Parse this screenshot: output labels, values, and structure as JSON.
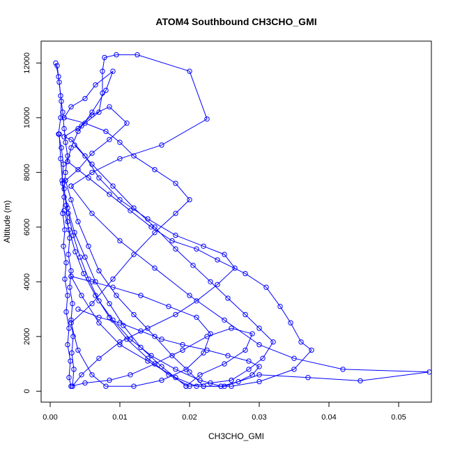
{
  "chart_data": {
    "type": "scatter",
    "title": "ATOM4 Southbound CH3CHO_GMI",
    "xlabel": "CH3CHO_GMI",
    "ylabel": "Altitude (m)",
    "xlim": [
      -0.0013,
      0.0547
    ],
    "ylim": [
      -400,
      12800
    ],
    "x_ticks": [
      0.0,
      0.01,
      0.02,
      0.03,
      0.04,
      0.05
    ],
    "x_tick_labels": [
      "0.00",
      "0.01",
      "0.02",
      "0.03",
      "0.04",
      "0.05"
    ],
    "y_ticks": [
      0,
      2000,
      4000,
      6000,
      8000,
      10000,
      12000
    ],
    "y_tick_labels": [
      "0",
      "2000",
      "4000",
      "6000",
      "8000",
      "10000",
      "12000"
    ],
    "grid": false,
    "legend": "none",
    "color": "#0000ff",
    "series": [
      {
        "points": [
          [
            0.0008,
            12000
          ],
          [
            0.0012,
            11500
          ],
          [
            0.0015,
            10800
          ],
          [
            0.0018,
            10200
          ],
          [
            0.002,
            9600
          ],
          [
            0.0022,
            9100
          ],
          [
            0.0025,
            8600
          ],
          [
            0.0022,
            8000
          ],
          [
            0.002,
            7400
          ],
          [
            0.0023,
            6800
          ],
          [
            0.0025,
            6200
          ],
          [
            0.0028,
            5600
          ],
          [
            0.0026,
            5000
          ],
          [
            0.003,
            4400
          ],
          [
            0.0028,
            3800
          ],
          [
            0.0032,
            3200
          ],
          [
            0.003,
            2600
          ],
          [
            0.0033,
            2000
          ],
          [
            0.0031,
            1400
          ],
          [
            0.0034,
            800
          ],
          [
            0.0032,
            180
          ]
        ]
      },
      {
        "points": [
          [
            0.0032,
            180
          ],
          [
            0.0045,
            600
          ],
          [
            0.007,
            1200
          ],
          [
            0.01,
            1800
          ],
          [
            0.014,
            2300
          ],
          [
            0.018,
            2800
          ],
          [
            0.021,
            3300
          ],
          [
            0.024,
            3900
          ],
          [
            0.0265,
            4500
          ],
          [
            0.025,
            5000
          ],
          [
            0.022,
            5300
          ],
          [
            0.018,
            5700
          ],
          [
            0.014,
            6300
          ],
          [
            0.01,
            7000
          ],
          [
            0.007,
            7800
          ],
          [
            0.005,
            8600
          ],
          [
            0.003,
            9200
          ],
          [
            0.002,
            9300
          ]
        ]
      },
      {
        "points": [
          [
            0.002,
            9300
          ],
          [
            0.0045,
            9700
          ],
          [
            0.007,
            10200
          ],
          [
            0.0075,
            10900
          ],
          [
            0.0075,
            11700
          ],
          [
            0.0078,
            12200
          ],
          [
            0.0095,
            12300
          ],
          [
            0.0125,
            12300
          ],
          [
            0.02,
            11700
          ],
          [
            0.0225,
            9950
          ],
          [
            0.016,
            9000
          ],
          [
            0.01,
            8500
          ],
          [
            0.006,
            8000
          ],
          [
            0.003,
            7500
          ]
        ]
      },
      {
        "points": [
          [
            0.003,
            7500
          ],
          [
            0.006,
            6500
          ],
          [
            0.01,
            5500
          ],
          [
            0.015,
            4500
          ],
          [
            0.02,
            3500
          ],
          [
            0.025,
            2600
          ],
          [
            0.03,
            1700
          ],
          [
            0.035,
            1200
          ],
          [
            0.042,
            800
          ],
          [
            0.0544,
            700
          ],
          [
            0.0445,
            380
          ],
          [
            0.037,
            500
          ],
          [
            0.03,
            600
          ],
          [
            0.025,
            180
          ],
          [
            0.021,
            180
          ],
          [
            0.018,
            500
          ],
          [
            0.014,
            1100
          ],
          [
            0.01,
            1700
          ],
          [
            0.007,
            2500
          ],
          [
            0.0045,
            3500
          ],
          [
            0.003,
            4200
          ]
        ]
      },
      {
        "points": [
          [
            0.003,
            4200
          ],
          [
            0.006,
            4000
          ],
          [
            0.009,
            3800
          ],
          [
            0.013,
            3500
          ],
          [
            0.017,
            3100
          ],
          [
            0.021,
            2700
          ],
          [
            0.023,
            2100
          ],
          [
            0.022,
            1400
          ],
          [
            0.0195,
            800
          ],
          [
            0.016,
            400
          ],
          [
            0.012,
            180
          ],
          [
            0.008,
            180
          ],
          [
            0.006,
            600
          ],
          [
            0.004,
            1500
          ],
          [
            0.003,
            2500
          ]
        ]
      },
      {
        "points": [
          [
            0.003,
            2500
          ],
          [
            0.006,
            3200
          ],
          [
            0.009,
            4100
          ],
          [
            0.012,
            5000
          ],
          [
            0.015,
            5800
          ],
          [
            0.018,
            6500
          ],
          [
            0.02,
            7000
          ],
          [
            0.018,
            7600
          ],
          [
            0.015,
            8100
          ],
          [
            0.012,
            8600
          ],
          [
            0.01,
            9100
          ],
          [
            0.008,
            9500
          ],
          [
            0.005,
            9800
          ],
          [
            0.002,
            10000
          ]
        ]
      },
      {
        "points": [
          [
            0.002,
            10000
          ],
          [
            0.003,
            10400
          ],
          [
            0.005,
            10700
          ],
          [
            0.0065,
            11200
          ],
          [
            0.009,
            11700
          ],
          [
            0.008,
            11000
          ],
          [
            0.006,
            10200
          ],
          [
            0.004,
            9500
          ],
          [
            0.003,
            8900
          ],
          [
            0.0025,
            8400
          ]
        ]
      },
      {
        "points": [
          [
            0.0025,
            8400
          ],
          [
            0.0055,
            7800
          ],
          [
            0.0085,
            7200
          ],
          [
            0.0115,
            6600
          ],
          [
            0.0145,
            6000
          ],
          [
            0.0175,
            5500
          ],
          [
            0.021,
            5200
          ],
          [
            0.024,
            4800
          ],
          [
            0.028,
            4300
          ],
          [
            0.031,
            3800
          ],
          [
            0.033,
            3100
          ],
          [
            0.0345,
            2500
          ],
          [
            0.036,
            1800
          ],
          [
            0.0375,
            1500
          ],
          [
            0.035,
            800
          ],
          [
            0.03,
            350
          ],
          [
            0.026,
            180
          ],
          [
            0.022,
            180
          ]
        ]
      },
      {
        "points": [
          [
            0.022,
            180
          ],
          [
            0.02,
            700
          ],
          [
            0.0175,
            1300
          ],
          [
            0.015,
            2000
          ],
          [
            0.012,
            2800
          ],
          [
            0.0095,
            3500
          ],
          [
            0.007,
            4400
          ],
          [
            0.0055,
            5300
          ],
          [
            0.004,
            6200
          ],
          [
            0.003,
            7000
          ],
          [
            0.0022,
            7700
          ]
        ]
      },
      {
        "points": [
          [
            0.0022,
            7700
          ],
          [
            0.004,
            8100
          ],
          [
            0.006,
            8700
          ],
          [
            0.0085,
            9200
          ],
          [
            0.011,
            9800
          ],
          [
            0.0085,
            10400
          ],
          [
            0.006,
            10100
          ],
          [
            0.004,
            9600
          ]
        ]
      },
      {
        "points": [
          [
            0.001,
            11900
          ],
          [
            0.0013,
            11300
          ],
          [
            0.0016,
            10600
          ],
          [
            0.0015,
            10000
          ],
          [
            0.0012,
            9400
          ],
          [
            0.0016,
            8900
          ],
          [
            0.0019,
            8300
          ],
          [
            0.0017,
            7700
          ],
          [
            0.002,
            7100
          ],
          [
            0.0018,
            6500
          ],
          [
            0.0021,
            5900
          ],
          [
            0.0019,
            5300
          ],
          [
            0.0023,
            4700
          ],
          [
            0.0021,
            4100
          ],
          [
            0.0025,
            3500
          ],
          [
            0.0023,
            2900
          ],
          [
            0.0027,
            2300
          ],
          [
            0.0025,
            1700
          ],
          [
            0.0029,
            1100
          ],
          [
            0.0027,
            500
          ],
          [
            0.003,
            180
          ]
        ]
      },
      {
        "points": [
          [
            0.003,
            180
          ],
          [
            0.005,
            300
          ],
          [
            0.0085,
            400
          ],
          [
            0.0115,
            600
          ],
          [
            0.015,
            1000
          ],
          [
            0.019,
            1500
          ],
          [
            0.0225,
            2000
          ],
          [
            0.026,
            2300
          ],
          [
            0.029,
            2100
          ],
          [
            0.028,
            1500
          ],
          [
            0.025,
            1000
          ],
          [
            0.0215,
            600
          ],
          [
            0.0195,
            180
          ]
        ]
      },
      {
        "points": [
          [
            0.0195,
            180
          ],
          [
            0.016,
            900
          ],
          [
            0.013,
            1600
          ],
          [
            0.0105,
            2400
          ],
          [
            0.0085,
            3200
          ],
          [
            0.0065,
            4000
          ],
          [
            0.005,
            4900
          ],
          [
            0.0035,
            5800
          ],
          [
            0.0025,
            6700
          ],
          [
            0.0018,
            7600
          ],
          [
            0.0015,
            8500
          ],
          [
            0.0013,
            9400
          ]
        ]
      },
      {
        "points": [
          [
            0.0035,
            9000
          ],
          [
            0.006,
            8300
          ],
          [
            0.009,
            7500
          ],
          [
            0.012,
            6700
          ],
          [
            0.015,
            6000
          ],
          [
            0.018,
            5200
          ],
          [
            0.0205,
            4600
          ],
          [
            0.023,
            4000
          ],
          [
            0.0255,
            3400
          ],
          [
            0.028,
            2800
          ],
          [
            0.03,
            2300
          ],
          [
            0.032,
            1800
          ],
          [
            0.0305,
            1200
          ],
          [
            0.0285,
            800
          ],
          [
            0.026,
            400
          ]
        ]
      },
      {
        "points": [
          [
            0.026,
            400
          ],
          [
            0.023,
            300
          ],
          [
            0.02,
            180
          ],
          [
            0.017,
            600
          ],
          [
            0.014,
            1200
          ],
          [
            0.011,
            1900
          ],
          [
            0.0085,
            2700
          ],
          [
            0.0065,
            3500
          ],
          [
            0.0048,
            4300
          ],
          [
            0.0036,
            5100
          ],
          [
            0.0027,
            5900
          ],
          [
            0.002,
            6600
          ]
        ]
      },
      {
        "points": [
          [
            0.004,
            3000
          ],
          [
            0.007,
            2700
          ],
          [
            0.01,
            2500
          ],
          [
            0.013,
            2200
          ],
          [
            0.016,
            1900
          ],
          [
            0.019,
            1700
          ],
          [
            0.0225,
            1500
          ],
          [
            0.0255,
            1300
          ],
          [
            0.0285,
            1100
          ],
          [
            0.03,
            900
          ],
          [
            0.029,
            600
          ],
          [
            0.027,
            350
          ],
          [
            0.0245,
            180
          ]
        ]
      },
      {
        "points": [
          [
            0.0245,
            180
          ],
          [
            0.0215,
            400
          ],
          [
            0.018,
            800
          ],
          [
            0.0145,
            1300
          ],
          [
            0.0115,
            1900
          ],
          [
            0.009,
            2600
          ],
          [
            0.007,
            3300
          ],
          [
            0.0055,
            4100
          ],
          [
            0.0043,
            4900
          ],
          [
            0.0033,
            5700
          ],
          [
            0.0026,
            6500
          ]
        ]
      }
    ]
  }
}
